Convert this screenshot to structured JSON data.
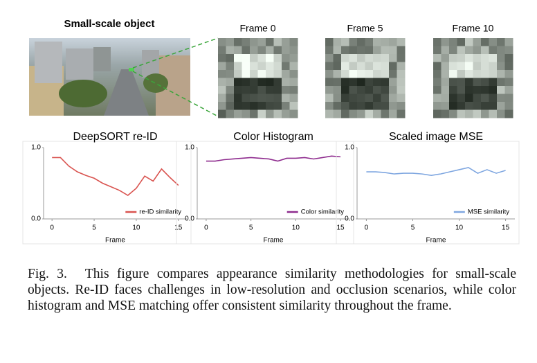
{
  "figure": {
    "photo_title": "Small-scale object",
    "crop_labels": [
      "Frame 0",
      "Frame 5",
      "Frame 10"
    ]
  },
  "chart_data": [
    {
      "type": "line",
      "title": "DeepSORT re-ID",
      "xlabel": "Frame",
      "x": [
        0,
        1,
        2,
        3,
        4,
        5,
        6,
        7,
        8,
        9,
        10,
        11,
        12,
        13,
        14,
        15
      ],
      "series": [
        {
          "name": "re-ID similarity",
          "color": "#d9534f",
          "values": [
            0.86,
            0.86,
            0.74,
            0.66,
            0.61,
            0.57,
            0.5,
            0.45,
            0.4,
            0.33,
            0.43,
            0.6,
            0.53,
            0.7,
            0.58,
            0.47
          ]
        }
      ],
      "xlim": [
        -1,
        16
      ],
      "ylim": [
        0,
        1
      ],
      "xticks": [
        0,
        5,
        10,
        15
      ],
      "yticks": [
        {
          "value": 0,
          "label": "0.0"
        },
        {
          "value": 1,
          "label": "1.0"
        }
      ],
      "legend": "lower right"
    },
    {
      "type": "line",
      "title": "Color Histogram",
      "xlabel": "Frame",
      "x": [
        0,
        1,
        2,
        3,
        4,
        5,
        6,
        7,
        8,
        9,
        10,
        11,
        12,
        13,
        14,
        15
      ],
      "series": [
        {
          "name": "Color similarity",
          "color": "#8e2b8e",
          "values": [
            0.81,
            0.81,
            0.83,
            0.84,
            0.85,
            0.86,
            0.85,
            0.84,
            0.81,
            0.85,
            0.85,
            0.86,
            0.84,
            0.86,
            0.88,
            0.87
          ]
        }
      ],
      "xlim": [
        -1,
        16
      ],
      "ylim": [
        0,
        1
      ],
      "xticks": [
        0,
        5,
        10,
        15
      ],
      "yticks": [
        {
          "value": 0,
          "label": "0.0"
        },
        {
          "value": 1,
          "label": "1.0"
        }
      ],
      "legend": "lower right"
    },
    {
      "type": "line",
      "title": "Scaled image MSE",
      "xlabel": "Frame",
      "x": [
        0,
        1,
        2,
        3,
        4,
        5,
        6,
        7,
        8,
        9,
        10,
        11,
        12,
        13,
        14,
        15
      ],
      "series": [
        {
          "name": "MSE similarity",
          "color": "#7ea6e0",
          "values": [
            0.66,
            0.66,
            0.65,
            0.63,
            0.64,
            0.64,
            0.63,
            0.61,
            0.63,
            0.66,
            0.69,
            0.72,
            0.64,
            0.69,
            0.64,
            0.68
          ]
        }
      ],
      "xlim": [
        -1,
        16
      ],
      "ylim": [
        0,
        1
      ],
      "xticks": [
        0,
        5,
        10,
        15
      ],
      "yticks": [
        {
          "value": 0,
          "label": "0.0"
        },
        {
          "value": 1,
          "label": "1.0"
        }
      ],
      "legend": "lower right"
    }
  ],
  "caption": {
    "label": "Fig. 3.",
    "text": "This figure compares appearance similarity methodologies for small-scale objects. Re-ID faces challenges in low-resolution and occlusion scenarios, while color histogram and MSE matching offer consistent similarity throughout the frame."
  }
}
